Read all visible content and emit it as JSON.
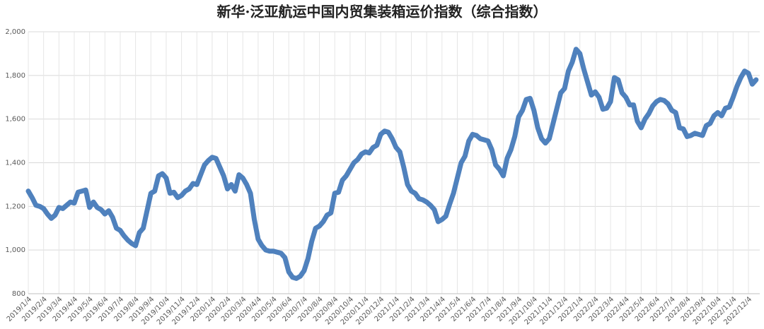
{
  "chart_data": {
    "type": "line",
    "title": "新华·泛亚航运中国内贸集装箱运价指数（综合指数）",
    "color": "#4f81bd",
    "grid": true,
    "ylim": [
      800,
      2000
    ],
    "yticks": [
      800,
      {
        "value": 1000,
        "label": "1,000"
      },
      {
        "value": 1200,
        "label": "1,200"
      },
      {
        "value": 1400,
        "label": "1,400"
      },
      {
        "value": 1600,
        "label": "1,600"
      },
      {
        "value": 1800,
        "label": "1,800"
      },
      {
        "value": 2000,
        "label": "2,000"
      }
    ],
    "categories": [
      "2019/1/4",
      null,
      null,
      null,
      "2019/2/4",
      null,
      null,
      null,
      "2019/3/4",
      null,
      null,
      null,
      "2019/4/4",
      null,
      null,
      null,
      "2019/5/4",
      null,
      null,
      null,
      "2019/6/4",
      null,
      null,
      null,
      "2019/7/4",
      null,
      null,
      null,
      "2019/8/4",
      null,
      null,
      null,
      "2019/9/4",
      null,
      null,
      null,
      "2019/10/4",
      null,
      null,
      null,
      "2019/11/4",
      null,
      null,
      null,
      "2019/12/4",
      null,
      null,
      null,
      "2020/1/4",
      null,
      null,
      null,
      "2020/2/4",
      null,
      null,
      null,
      "2020/3/4",
      null,
      null,
      null,
      "2020/4/4",
      null,
      null,
      null,
      "2020/5/4",
      null,
      null,
      null,
      "2020/6/4",
      null,
      null,
      null,
      "2020/7/4",
      null,
      null,
      null,
      "2020/8/4",
      null,
      null,
      null,
      "2020/9/4",
      null,
      null,
      null,
      "2020/10/4",
      null,
      null,
      null,
      "2020/11/4",
      null,
      null,
      null,
      "2020/12/4",
      null,
      null,
      null,
      "2021/1/4",
      null,
      null,
      null,
      "2021/2/4",
      null,
      null,
      null,
      "2021/3/4",
      null,
      null,
      null,
      "2021/4/4",
      null,
      null,
      null,
      "2021/5/4",
      null,
      null,
      null,
      "2021/6/4",
      null,
      null,
      null,
      "2021/7/4",
      null,
      null,
      null,
      "2021/8/4",
      null,
      null,
      null,
      "2021/9/4",
      null,
      null,
      null,
      "2021/10/4",
      null,
      null,
      null,
      "2021/11/4",
      null,
      null,
      null,
      "2021/12/4",
      null,
      null,
      null,
      "2022/1/4",
      null,
      null,
      null,
      "2022/2/4",
      null,
      null,
      null,
      "2022/3/4",
      null,
      null,
      null,
      "2022/4/4",
      null,
      null,
      null,
      "2022/5/4",
      null,
      null,
      null,
      "2022/6/4",
      null,
      null,
      null,
      "2022/7/4",
      null,
      null,
      null,
      "2022/8/4",
      null,
      null,
      null,
      "2022/9/4",
      null,
      null,
      null,
      "2022/10/4",
      null,
      null,
      null,
      "2022/11/4",
      null,
      null,
      null,
      "2022/12/4",
      null,
      null
    ],
    "values": [
      1270,
      1240,
      1205,
      1200,
      1190,
      1165,
      1145,
      1160,
      1195,
      1190,
      1205,
      1220,
      1215,
      1265,
      1270,
      1275,
      1195,
      1220,
      1195,
      1185,
      1165,
      1180,
      1150,
      1100,
      1090,
      1065,
      1045,
      1030,
      1020,
      1080,
      1100,
      1180,
      1260,
      1270,
      1340,
      1350,
      1330,
      1260,
      1265,
      1240,
      1250,
      1270,
      1280,
      1305,
      1300,
      1345,
      1390,
      1410,
      1425,
      1420,
      1380,
      1340,
      1280,
      1300,
      1270,
      1345,
      1330,
      1300,
      1260,
      1140,
      1050,
      1020,
      1000,
      995,
      995,
      990,
      985,
      965,
      900,
      875,
      870,
      880,
      905,
      960,
      1040,
      1100,
      1110,
      1130,
      1160,
      1170,
      1260,
      1265,
      1320,
      1340,
      1370,
      1400,
      1415,
      1440,
      1450,
      1445,
      1470,
      1480,
      1530,
      1545,
      1540,
      1510,
      1470,
      1450,
      1380,
      1300,
      1270,
      1260,
      1235,
      1230,
      1220,
      1205,
      1185,
      1130,
      1140,
      1155,
      1210,
      1260,
      1330,
      1400,
      1430,
      1500,
      1530,
      1525,
      1510,
      1505,
      1500,
      1460,
      1390,
      1370,
      1340,
      1420,
      1460,
      1520,
      1610,
      1640,
      1690,
      1695,
      1640,
      1560,
      1510,
      1490,
      1510,
      1580,
      1650,
      1720,
      1740,
      1820,
      1860,
      1920,
      1900,
      1830,
      1770,
      1710,
      1725,
      1700,
      1645,
      1650,
      1680,
      1790,
      1780,
      1720,
      1700,
      1665,
      1665,
      1590,
      1560,
      1600,
      1625,
      1660,
      1680,
      1690,
      1685,
      1670,
      1640,
      1630,
      1560,
      1555,
      1520,
      1525,
      1535,
      1530,
      1525,
      1570,
      1580,
      1615,
      1630,
      1615,
      1650,
      1655,
      1700,
      1750,
      1790,
      1820,
      1810,
      1760,
      1780
    ]
  }
}
